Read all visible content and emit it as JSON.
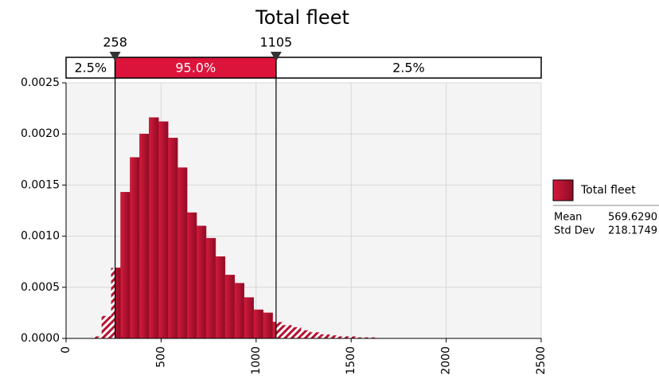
{
  "chart_data": {
    "type": "histogram",
    "title": "Total fleet",
    "bins": [
      137,
      187,
      237,
      287,
      337,
      387,
      437,
      487,
      537,
      587,
      637,
      687,
      737,
      787,
      837,
      887,
      937,
      987,
      1037,
      1087,
      1137,
      1187,
      1237,
      1287,
      1337,
      1387,
      1437,
      1487,
      1537,
      1587,
      1637
    ],
    "series": [
      {
        "name": "Total fleet",
        "color": "#b8102f",
        "values": [
          2e-05,
          0.00022,
          0.00069,
          0.00143,
          0.00177,
          0.002,
          0.00216,
          0.00212,
          0.00196,
          0.00167,
          0.00123,
          0.0011,
          0.00098,
          0.0008,
          0.00062,
          0.00054,
          0.0004,
          0.00028,
          0.00025,
          0.00016,
          0.00013,
          0.00011,
          8e-05,
          6e-05,
          4e-05,
          3e-05,
          2e-05,
          2e-05,
          1e-05,
          1e-05
        ]
      }
    ],
    "xlim": [
      0,
      2500
    ],
    "xticks": [
      0,
      500,
      1000,
      1500,
      2000,
      2500
    ],
    "ylim": [
      0,
      0.0025
    ],
    "yticks": [
      {
        "value": 0,
        "label": "0.0000"
      },
      {
        "value": 0.0005,
        "label": "0.0005"
      },
      {
        "value": 0.001,
        "label": "0.0010"
      },
      {
        "value": 0.0015,
        "label": "0.0015"
      },
      {
        "value": 0.002,
        "label": "0.0020"
      },
      {
        "value": 0.0025,
        "label": "0.0025"
      }
    ],
    "grid": true,
    "delimiters": [
      258,
      1105
    ],
    "region_values": [
      2.5,
      95.0,
      2.5
    ],
    "region_labels": [
      "2.5%",
      "95.0%",
      "2.5%"
    ],
    "region_color": "#dc143c",
    "stats": [
      {
        "label": "Mean",
        "value": "569.6290"
      },
      {
        "label": "Std Dev",
        "value": "218.1749"
      }
    ]
  }
}
